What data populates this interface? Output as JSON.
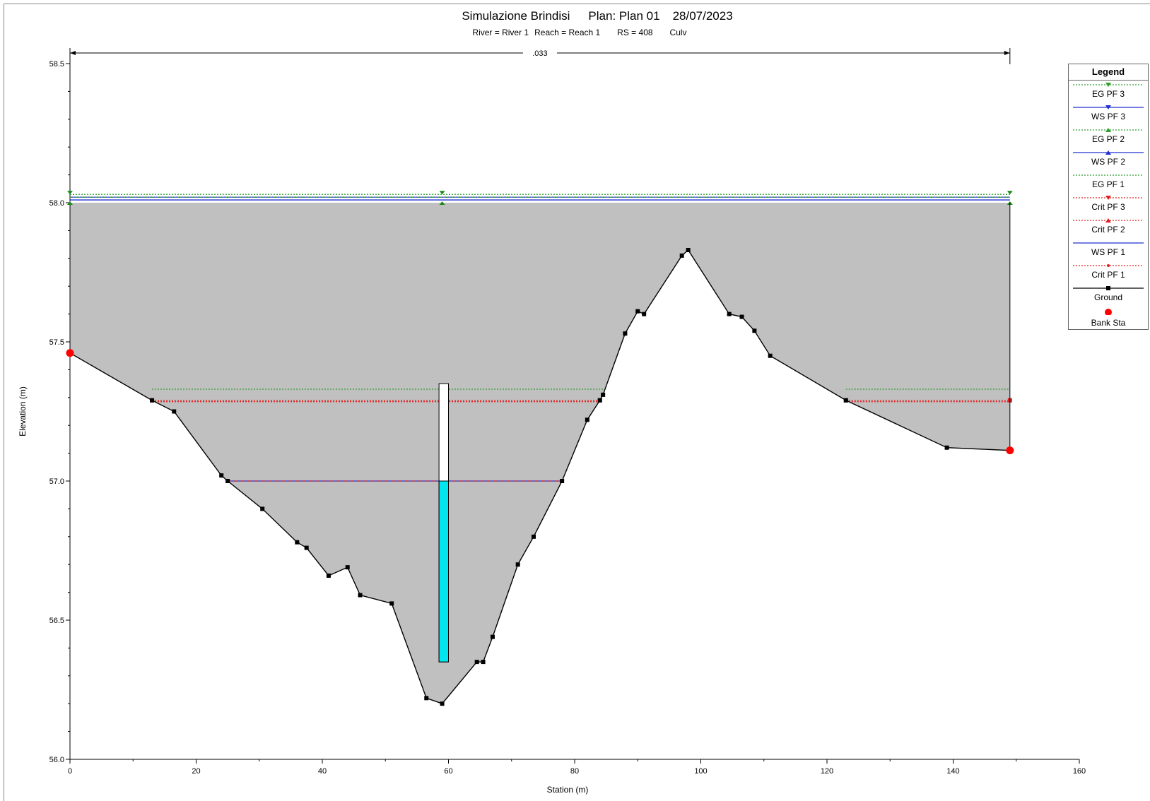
{
  "chart_data": {
    "type": "line",
    "title_parts": [
      "Simulazione Brindisi",
      "Plan: Plan 01",
      "28/07/2023"
    ],
    "subtitle_parts": [
      "River = River 1",
      "Reach = Reach 1",
      "RS = 408",
      "Culv"
    ],
    "xlabel": "Station (m)",
    "ylabel": "Elevation (m)",
    "xlim": [
      0,
      160
    ],
    "ylim": [
      56.0,
      58.5
    ],
    "x_ticks": [
      0,
      20,
      40,
      60,
      80,
      100,
      120,
      140,
      160
    ],
    "y_ticks": [
      "56.0",
      "56.5",
      "57.0",
      "57.5",
      "58.0",
      "58.5"
    ],
    "manning_label": ".033",
    "manning_range": [
      0,
      149
    ],
    "ground": [
      [
        0,
        57.46
      ],
      [
        13,
        57.29
      ],
      [
        16.5,
        57.25
      ],
      [
        24,
        57.02
      ],
      [
        25,
        57.0
      ],
      [
        30.5,
        56.9
      ],
      [
        36,
        56.78
      ],
      [
        37.5,
        56.76
      ],
      [
        41,
        56.66
      ],
      [
        44,
        56.69
      ],
      [
        46,
        56.59
      ],
      [
        51,
        56.56
      ],
      [
        56.5,
        56.22
      ],
      [
        59,
        56.2
      ],
      [
        64.5,
        56.35
      ],
      [
        65.5,
        56.35
      ],
      [
        67,
        56.44
      ],
      [
        71,
        56.7
      ],
      [
        73.5,
        56.8
      ],
      [
        78,
        57.0
      ],
      [
        82,
        57.22
      ],
      [
        84,
        57.29
      ],
      [
        84.5,
        57.31
      ],
      [
        88,
        57.53
      ],
      [
        90,
        57.61
      ],
      [
        91,
        57.6
      ],
      [
        97,
        57.81
      ],
      [
        98,
        57.83
      ],
      [
        104.5,
        57.6
      ],
      [
        106.5,
        57.59
      ],
      [
        108.5,
        57.54
      ],
      [
        111,
        57.45
      ],
      [
        123,
        57.29
      ],
      [
        139,
        57.12
      ],
      [
        149,
        57.11
      ]
    ],
    "bank_stations": [
      [
        0,
        57.46
      ],
      [
        149,
        57.11
      ]
    ],
    "culvert": {
      "x_left": 58.5,
      "x_right": 60.0,
      "bottom": 56.35,
      "top": 57.35,
      "water": 57.0
    },
    "water_surfaces": [
      {
        "name": "EG PF 3",
        "color": "#2e9e2e",
        "style": "dotted",
        "segments": [
          [
            0,
            149,
            58.03
          ]
        ]
      },
      {
        "name": "WS PF 3",
        "color": "#2030d0",
        "style": "solid",
        "segments": [
          [
            0,
            149,
            58.02
          ]
        ]
      },
      {
        "name": "EG PF 2",
        "color": "#2e9e2e",
        "style": "dotted",
        "segments": [
          [
            0,
            149,
            58.02
          ]
        ]
      },
      {
        "name": "WS PF 2",
        "color": "#2030d0",
        "style": "solid",
        "segments": [
          [
            0,
            149,
            58.01
          ]
        ]
      },
      {
        "name": "EG PF 1",
        "color": "#2e9e2e",
        "style": "dotted",
        "segments": [
          [
            13,
            84.5,
            57.33
          ],
          [
            123,
            149,
            57.33
          ]
        ]
      },
      {
        "name": "Crit PF 3",
        "color": "#e02020",
        "style": "dotted",
        "segments": [
          [
            13,
            84,
            57.29
          ],
          [
            123,
            149,
            57.29
          ]
        ]
      },
      {
        "name": "Crit PF 2",
        "color": "#e02020",
        "style": "dotted",
        "segments": [
          [
            13,
            84,
            57.285
          ],
          [
            123,
            149,
            57.285
          ]
        ]
      },
      {
        "name": "WS PF 1",
        "color": "#2030d0",
        "style": "solid",
        "segments": [
          [
            25,
            78,
            57.0
          ]
        ]
      },
      {
        "name": "Crit PF 1",
        "color": "#e02020",
        "style": "dotted",
        "segments": [
          [
            25,
            78,
            57.0
          ]
        ]
      }
    ],
    "legend_title": "Legend",
    "legend": [
      {
        "label": "EG PF 3",
        "color": "#2e9e2e",
        "style": "dotted",
        "marker": "tri-down"
      },
      {
        "label": "WS PF 3",
        "color": "#2030d0",
        "style": "solid",
        "marker": "tri-down"
      },
      {
        "label": "EG PF 2",
        "color": "#2e9e2e",
        "style": "dotted",
        "marker": "tri-up"
      },
      {
        "label": "WS PF 2",
        "color": "#2030d0",
        "style": "solid",
        "marker": "tri-up"
      },
      {
        "label": "EG PF 1",
        "color": "#2e9e2e",
        "style": "dotted",
        "marker": "none"
      },
      {
        "label": "Crit PF 3",
        "color": "#e02020",
        "style": "dotted",
        "marker": "tri-down"
      },
      {
        "label": "Crit PF 2",
        "color": "#e02020",
        "style": "dotted",
        "marker": "tri-up"
      },
      {
        "label": "WS PF 1",
        "color": "#2030d0",
        "style": "solid",
        "marker": "none"
      },
      {
        "label": "Crit PF 1",
        "color": "#e02020",
        "style": "dotted",
        "marker": "dot"
      },
      {
        "label": "Ground",
        "color": "#000000",
        "style": "solid",
        "marker": "square"
      },
      {
        "label": "Bank Sta",
        "color": "#ff0000",
        "style": "none",
        "marker": "circle"
      }
    ],
    "colors": {
      "fill": "#c0c0c0",
      "culvert_water": "#00e5ee",
      "ground": "#000000",
      "bank": "#ff0000"
    }
  }
}
